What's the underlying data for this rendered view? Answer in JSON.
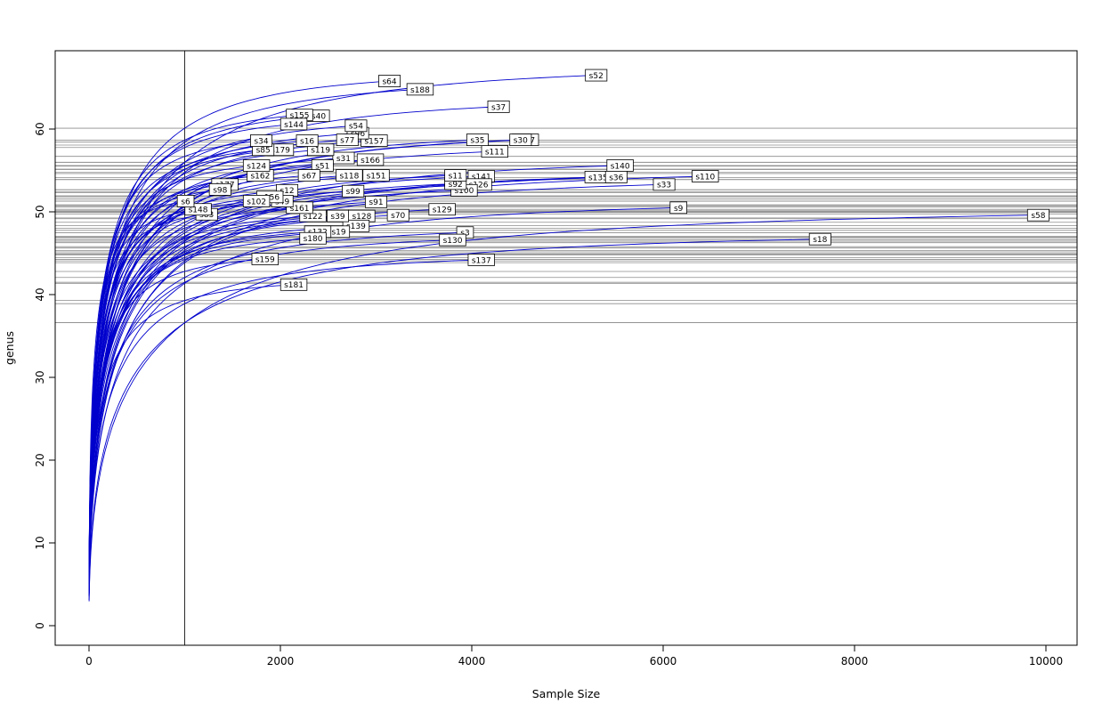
{
  "chart_data": {
    "type": "line",
    "title": "",
    "xlabel": "Sample Size",
    "ylabel": "genus",
    "x_ticks": [
      0,
      2000,
      4000,
      6000,
      8000,
      10000
    ],
    "y_ticks": [
      0,
      10,
      20,
      30,
      40,
      50,
      60
    ],
    "xlim": [
      -350,
      10325
    ],
    "ylim": [
      -2.4,
      69.5
    ],
    "vline_x": 1000,
    "grid": false,
    "legend": "none",
    "curve_color": "#0000cd",
    "hline_color": "#8c8c8c",
    "vline_color": "#2b2b2b",
    "box_color": "#000000",
    "label_box_fill": "#ffffff",
    "label_box_stroke": "#000000",
    "series_note": "each series = [sample label, curve end sample size, curve end genus richness]; horizontal reference lines are drawn at each curve's richness at the vertical line (sample size 1000)",
    "series": [
      [
        "s58",
        9920,
        49.6
      ],
      [
        "s18",
        7640,
        46.7
      ],
      [
        "s110",
        6440,
        54.3
      ],
      [
        "s9",
        6160,
        50.5
      ],
      [
        "s33",
        6010,
        53.3
      ],
      [
        "s140",
        5550,
        55.6
      ],
      [
        "s135",
        5320,
        54.2
      ],
      [
        "s36",
        5510,
        54.2
      ],
      [
        "s52",
        5300,
        66.5
      ],
      [
        "s107",
        4560,
        58.7
      ],
      [
        "s30",
        4510,
        58.7
      ],
      [
        "s37",
        4280,
        62.7
      ],
      [
        "s111",
        4240,
        57.3
      ],
      [
        "s141",
        4100,
        54.3
      ],
      [
        "s137",
        4100,
        44.2
      ],
      [
        "s126",
        4070,
        53.3
      ],
      [
        "s35",
        4060,
        58.7
      ],
      [
        "s3",
        3930,
        47.5
      ],
      [
        "s100",
        3920,
        52.6
      ],
      [
        "s92",
        3830,
        53.4
      ],
      [
        "s11",
        3830,
        54.4
      ],
      [
        "s130",
        3800,
        46.6
      ],
      [
        "s129",
        3690,
        50.3
      ],
      [
        "s188",
        3460,
        64.8
      ],
      [
        "s70",
        3230,
        49.6
      ],
      [
        "s64",
        3140,
        65.8
      ],
      [
        "s151",
        3000,
        54.4
      ],
      [
        "s91",
        3000,
        51.2
      ],
      [
        "s157",
        2980,
        58.6
      ],
      [
        "s166",
        2940,
        56.3
      ],
      [
        "s128",
        2850,
        49.5
      ],
      [
        "s96",
        2810,
        59.5
      ],
      [
        "s54",
        2790,
        60.4
      ],
      [
        "s139",
        2790,
        48.3
      ],
      [
        "s99",
        2760,
        52.5
      ],
      [
        "s118",
        2720,
        54.4
      ],
      [
        "s77",
        2700,
        58.7
      ],
      [
        "s31",
        2660,
        56.5
      ],
      [
        "s19",
        2610,
        47.6
      ],
      [
        "s39",
        2600,
        49.5
      ],
      [
        "s51",
        2440,
        55.6
      ],
      [
        "s119",
        2420,
        57.5
      ],
      [
        "s40",
        2400,
        61.6
      ],
      [
        "s132",
        2390,
        47.6
      ],
      [
        "s180",
        2340,
        46.8
      ],
      [
        "s122",
        2340,
        49.5
      ],
      [
        "s67",
        2300,
        54.4
      ],
      [
        "s16",
        2280,
        58.6
      ],
      [
        "s155",
        2200,
        61.7
      ],
      [
        "s161",
        2200,
        50.5
      ],
      [
        "s181",
        2140,
        41.2
      ],
      [
        "s144",
        2140,
        60.6
      ],
      [
        "s12",
        2070,
        52.6
      ],
      [
        "s49",
        2020,
        51.3
      ],
      [
        "s179",
        2000,
        57.5
      ],
      [
        "s156",
        1890,
        51.8
      ],
      [
        "s159",
        1840,
        44.3
      ],
      [
        "s85",
        1820,
        57.5
      ],
      [
        "s34",
        1800,
        58.6
      ],
      [
        "s162",
        1790,
        54.4
      ],
      [
        "s124",
        1750,
        55.6
      ],
      [
        "s102",
        1750,
        51.3
      ],
      [
        "s177",
        1420,
        53.3
      ],
      [
        "s98",
        1370,
        52.7
      ],
      [
        "s83",
        1230,
        49.7
      ],
      [
        "s148",
        1140,
        50.3
      ],
      [
        "s6",
        1010,
        51.3
      ]
    ]
  }
}
